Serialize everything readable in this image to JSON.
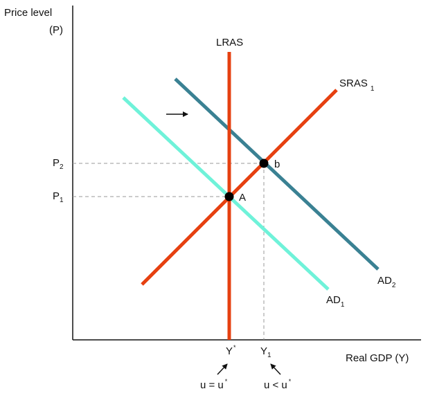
{
  "axes": {
    "y_title_line1": "Price level",
    "y_title_line2": "(P)",
    "x_title": "Real GDP (Y)"
  },
  "price_levels": {
    "p1": {
      "base": "P",
      "sub": "1"
    },
    "p2": {
      "base": "P",
      "sub": "2"
    }
  },
  "output_levels": {
    "y_star": {
      "base": "Y",
      "sup": "*"
    },
    "y1": {
      "base": "Y",
      "sub": "1"
    }
  },
  "curves": {
    "lras": {
      "label": "LRAS",
      "color": "#e64010"
    },
    "sras": {
      "label": "SRAS",
      "sub": "1",
      "color": "#e64010"
    },
    "ad1": {
      "label": "AD",
      "sub": "1",
      "color": "#6ff2d9"
    },
    "ad2": {
      "label": "AD",
      "sub": "2",
      "color": "#3a8193"
    }
  },
  "points": {
    "a": "A",
    "b": "b"
  },
  "unemployment": {
    "natural": {
      "text": "u = u",
      "sup": "*"
    },
    "below": {
      "text": "u < u",
      "sup": "*"
    }
  },
  "colors": {
    "axis": "#111111",
    "guide": "#999999",
    "point": "#000000"
  }
}
